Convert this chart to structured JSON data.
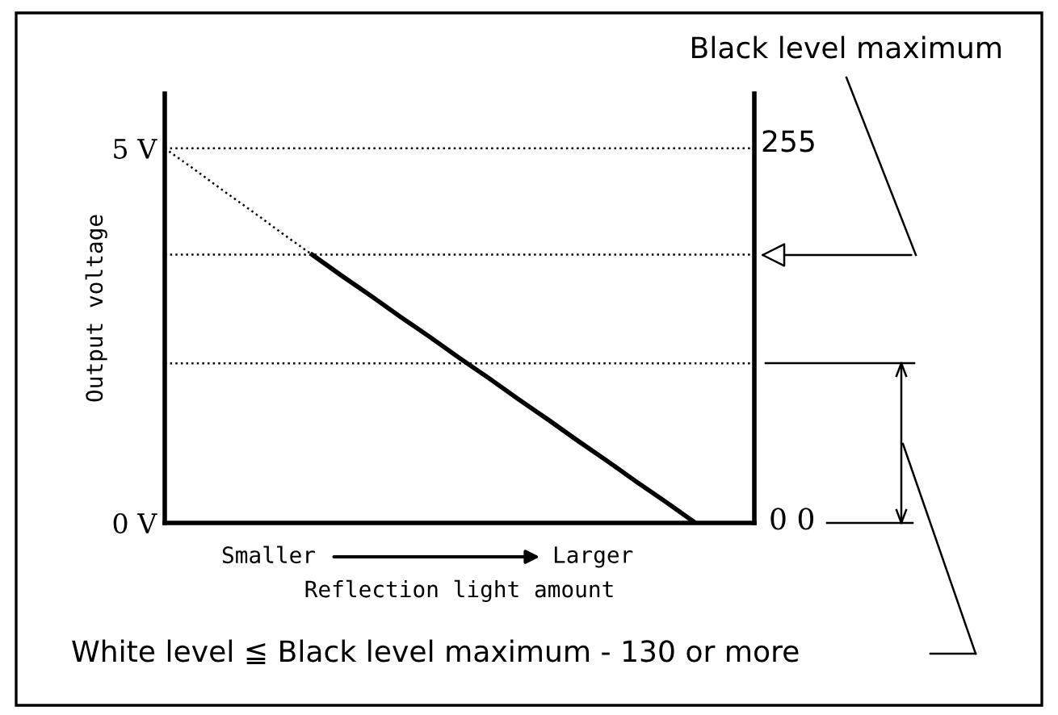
{
  "chart_data": {
    "type": "line",
    "xlabel": "Reflection light amount",
    "ylabel": "Output voltage",
    "categories": [
      null,
      null,
      null,
      null,
      null,
      null,
      null,
      null,
      null,
      null,
      null,
      null,
      null,
      null,
      null,
      null,
      null,
      null,
      null,
      null,
      null
    ],
    "series": [
      {
        "color": "#000000",
        "values": [
          5,
          4.72,
          4.43,
          4.15,
          3.86,
          3.58,
          null,
          null,
          null,
          null,
          null,
          null,
          null,
          null,
          null,
          null,
          null,
          null,
          null,
          null,
          null
        ],
        "line_style": "dotted"
      },
      {
        "color": "#000000",
        "values": [
          null,
          null,
          null,
          null,
          null,
          3.58,
          3.3,
          3.03,
          2.75,
          2.48,
          2.2,
          1.93,
          1.65,
          1.38,
          1.1,
          0.83,
          0.55,
          0.28,
          0,
          null,
          null
        ],
        "line_style": "solid"
      }
    ],
    "ylim": [
      0,
      5.73
    ],
    "yticks": [
      {
        "value": 0,
        "label": "0 V"
      },
      {
        "value": 5,
        "label": "5 V"
      }
    ],
    "ref_lines": [
      {
        "axis": "y",
        "value": 5,
        "color": "#000000",
        "line_style": "dotted"
      },
      {
        "axis": "y",
        "value": 3.58,
        "color": "#000000",
        "line_style": "dotted"
      },
      {
        "axis": "y",
        "value": 2.13,
        "color": "#000000",
        "line_style": "dotted"
      }
    ],
    "annotations": [
      "255",
      "0 0",
      "Smaller",
      "Larger",
      "Black level maximum",
      "White level ≦ Black level maximum - 130 or more"
    ],
    "grid": false,
    "legend": false,
    "marker": "none"
  }
}
